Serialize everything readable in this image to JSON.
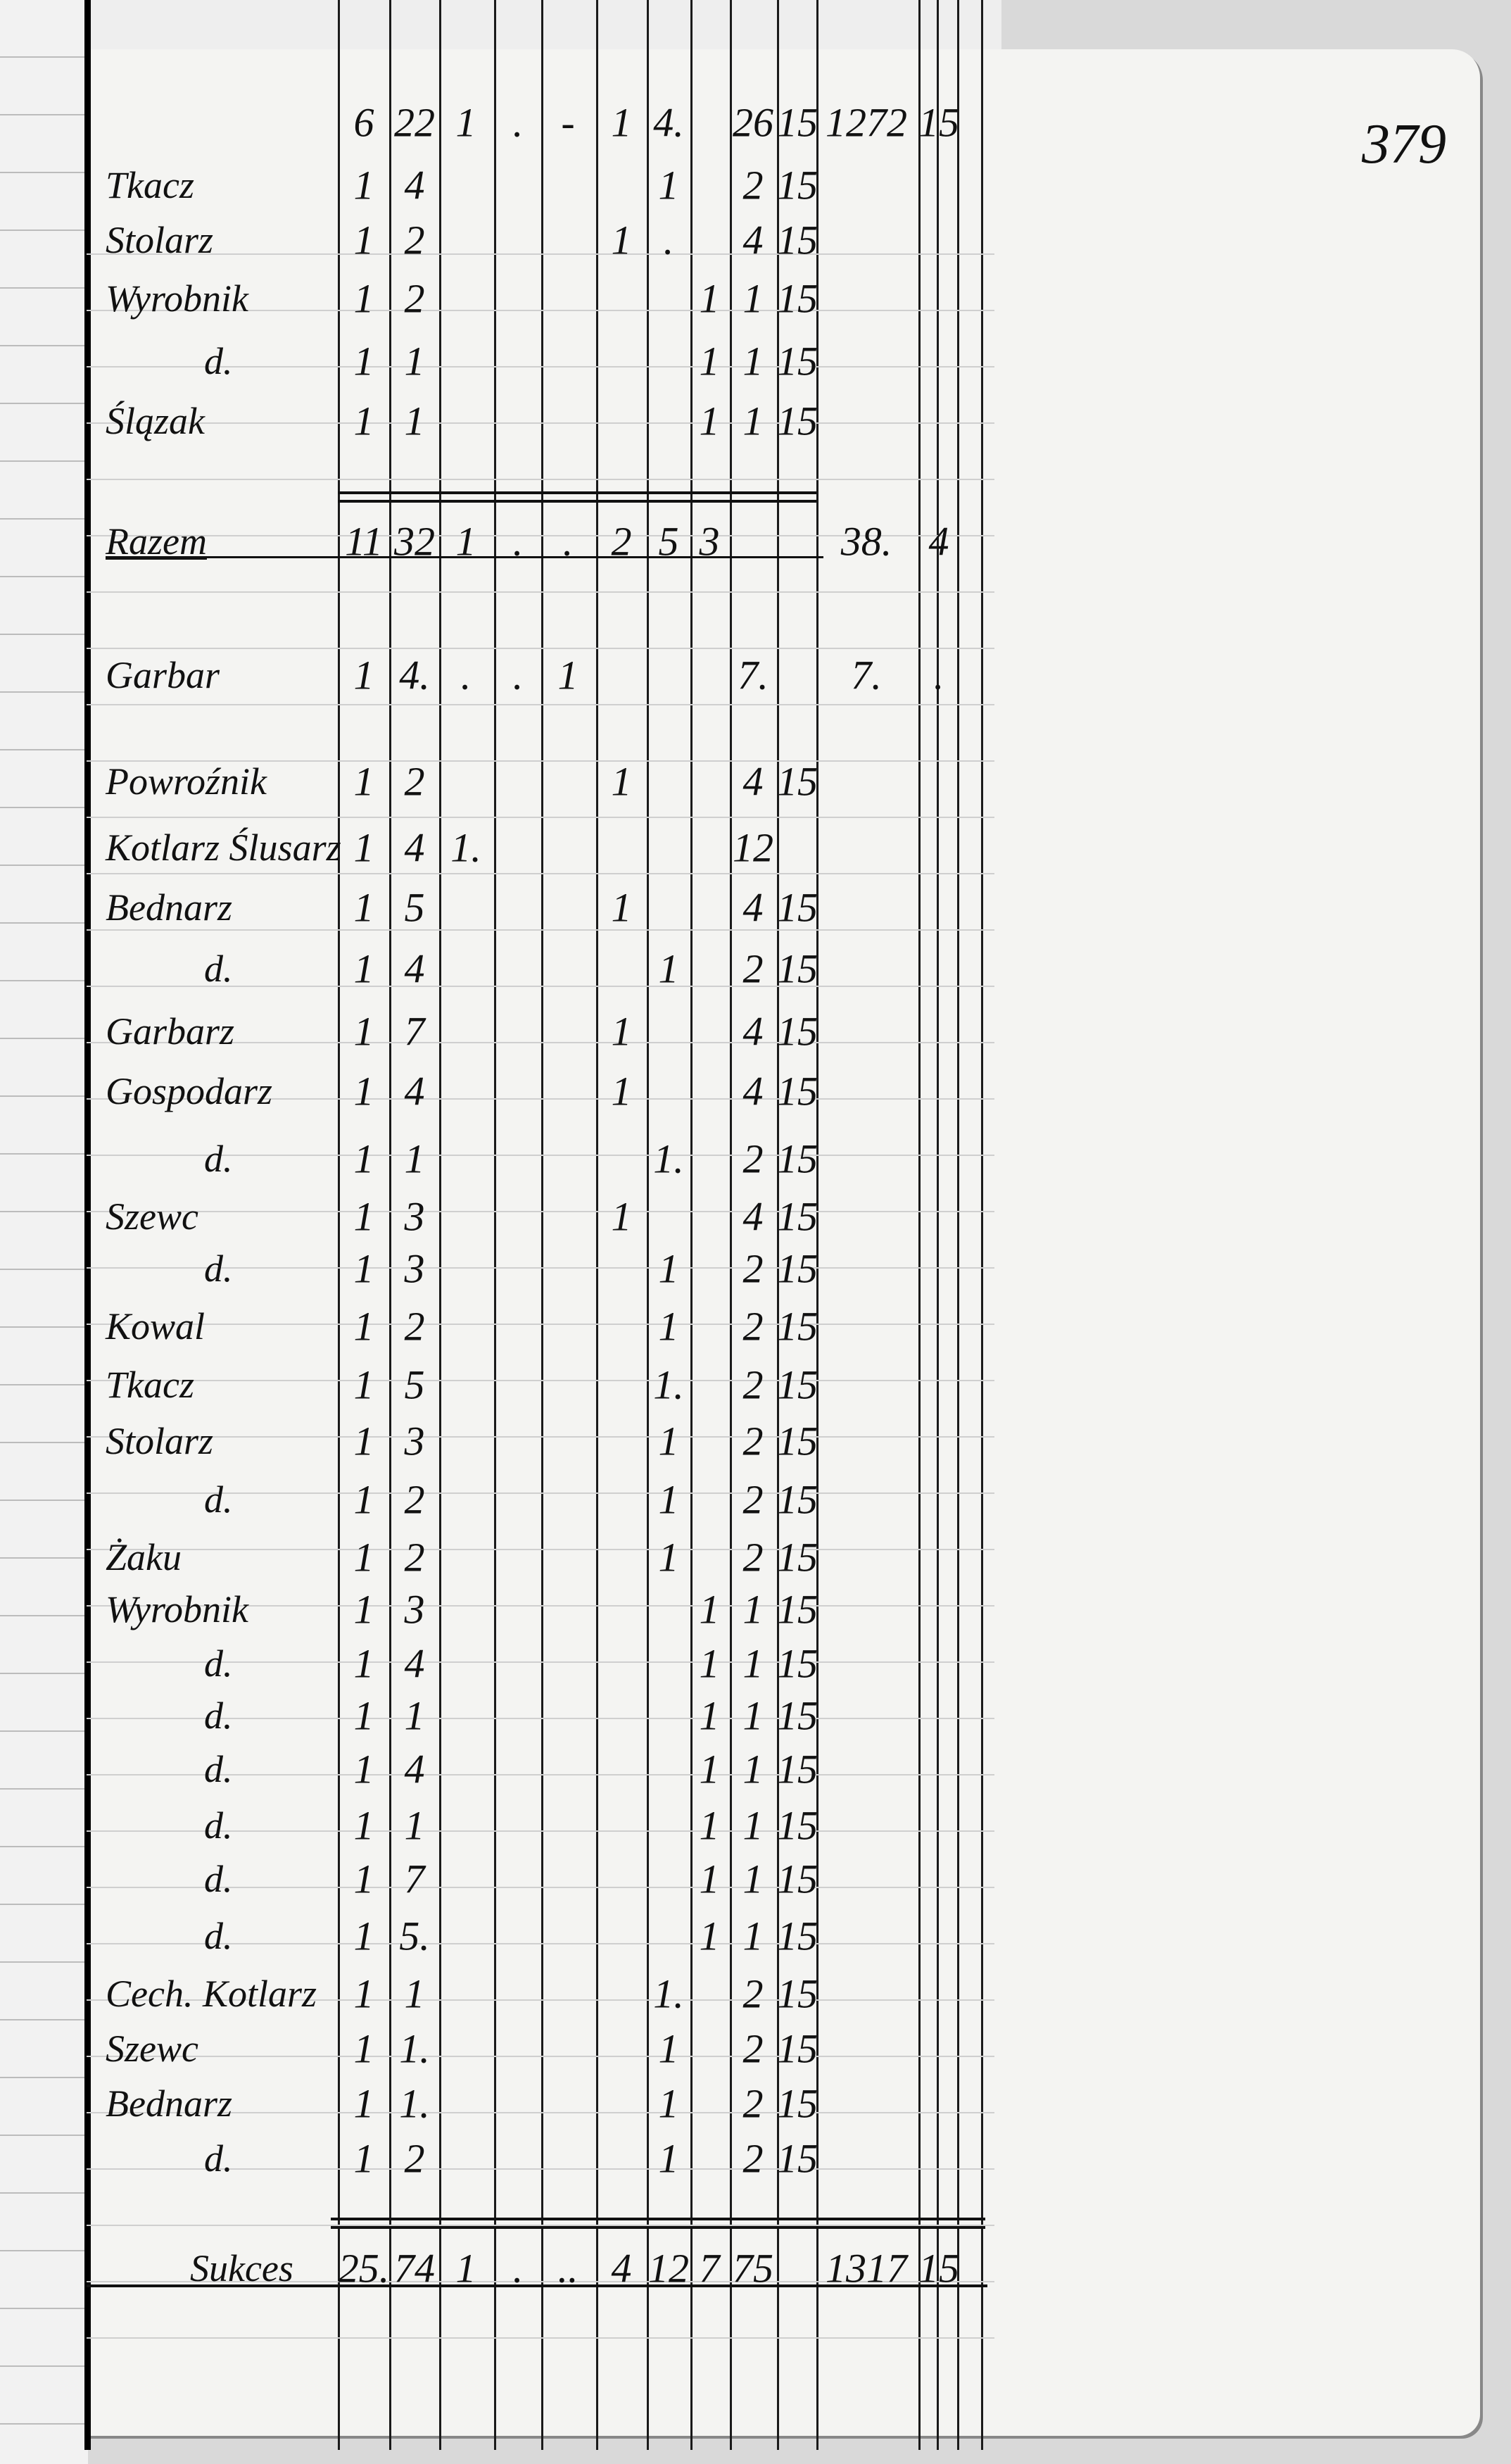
{
  "page_number": "379",
  "header_row": [
    "6",
    "22",
    "1",
    ".",
    "-",
    "1",
    "4.",
    "",
    "26",
    "15",
    "1272",
    "15"
  ],
  "rows": [
    {
      "name": "Tkacz",
      "cells": [
        "1",
        "4",
        "",
        "",
        "",
        "",
        "1",
        "",
        "2",
        "15",
        "",
        ""
      ]
    },
    {
      "name": "Stolarz",
      "cells": [
        "1",
        "2",
        "",
        "",
        "",
        "1",
        ".",
        "",
        "4",
        "15",
        "",
        ""
      ]
    },
    {
      "name": "Wyrobnik",
      "cells": [
        "1",
        "2",
        "",
        "",
        "",
        "",
        "",
        "1",
        "1",
        "15",
        "",
        ""
      ]
    },
    {
      "name": "d.",
      "cells": [
        "1",
        "1",
        "",
        "",
        "",
        "",
        "",
        "1",
        "1",
        "15",
        "",
        ""
      ]
    },
    {
      "name": "Ślązak",
      "cells": [
        "1",
        "1",
        "",
        "",
        "",
        "",
        "",
        "1",
        "1",
        "15",
        "",
        ""
      ]
    },
    {
      "name": "Razem",
      "cells": [
        "11",
        "32",
        "1",
        ".",
        ".",
        "2",
        "5",
        "3",
        "",
        "",
        "38.",
        "4"
      ],
      "subtotal": true
    },
    {
      "name": "Garbar",
      "cells": [
        "1",
        "4.",
        ".",
        ".",
        "1",
        "",
        "",
        "",
        "7.",
        "",
        "7.",
        "."
      ]
    },
    {
      "name": "Powroźnik",
      "cells": [
        "1",
        "2",
        "",
        "",
        "",
        "1",
        "",
        "",
        "4",
        "15",
        "",
        ""
      ]
    },
    {
      "name": "Kotlarz Ślusarz",
      "cells": [
        "1",
        "4",
        "1.",
        "",
        "",
        "",
        "",
        "",
        "12",
        "",
        "",
        ""
      ]
    },
    {
      "name": "Bednarz",
      "cells": [
        "1",
        "5",
        "",
        "",
        "",
        "1",
        "",
        "",
        "4",
        "15",
        "",
        ""
      ]
    },
    {
      "name": "d.",
      "cells": [
        "1",
        "4",
        "",
        "",
        "",
        "",
        "1",
        "",
        "2",
        "15",
        "",
        ""
      ]
    },
    {
      "name": "Garbarz",
      "cells": [
        "1",
        "7",
        "",
        "",
        "",
        "1",
        "",
        "",
        "4",
        "15",
        "",
        ""
      ]
    },
    {
      "name": "Gospodarz",
      "cells": [
        "1",
        "4",
        "",
        "",
        "",
        "1",
        "",
        "",
        "4",
        "15",
        "",
        ""
      ]
    },
    {
      "name": "d.",
      "cells": [
        "1",
        "1",
        "",
        "",
        "",
        "",
        "1.",
        "",
        "2",
        "15",
        "",
        ""
      ]
    },
    {
      "name": "Szewc",
      "cells": [
        "1",
        "3",
        "",
        "",
        "",
        "1",
        "",
        "",
        "4",
        "15",
        "",
        ""
      ]
    },
    {
      "name": "d.",
      "cells": [
        "1",
        "3",
        "",
        "",
        "",
        "",
        "1",
        "",
        "2",
        "15",
        "",
        ""
      ]
    },
    {
      "name": "Kowal",
      "cells": [
        "1",
        "2",
        "",
        "",
        "",
        "",
        "1",
        "",
        "2",
        "15",
        "",
        ""
      ]
    },
    {
      "name": "Tkacz",
      "cells": [
        "1",
        "5",
        "",
        "",
        "",
        "",
        "1.",
        "",
        "2",
        "15",
        "",
        ""
      ]
    },
    {
      "name": "Stolarz",
      "cells": [
        "1",
        "3",
        "",
        "",
        "",
        "",
        "1",
        "",
        "2",
        "15",
        "",
        ""
      ]
    },
    {
      "name": "d.",
      "cells": [
        "1",
        "2",
        "",
        "",
        "",
        "",
        "1",
        "",
        "2",
        "15",
        "",
        ""
      ]
    },
    {
      "name": "Żaku",
      "cells": [
        "1",
        "2",
        "",
        "",
        "",
        "",
        "1",
        "",
        "2",
        "15",
        "",
        ""
      ]
    },
    {
      "name": "Wyrobnik",
      "cells": [
        "1",
        "3",
        "",
        "",
        "",
        "",
        "",
        "1",
        "1",
        "15",
        "",
        ""
      ]
    },
    {
      "name": "d.",
      "cells": [
        "1",
        "4",
        "",
        "",
        "",
        "",
        "",
        "1",
        "1",
        "15",
        "",
        ""
      ]
    },
    {
      "name": "d.",
      "cells": [
        "1",
        "1",
        "",
        "",
        "",
        "",
        "",
        "1",
        "1",
        "15",
        "",
        ""
      ]
    },
    {
      "name": "d.",
      "cells": [
        "1",
        "4",
        "",
        "",
        "",
        "",
        "",
        "1",
        "1",
        "15",
        "",
        ""
      ]
    },
    {
      "name": "d.",
      "cells": [
        "1",
        "1",
        "",
        "",
        "",
        "",
        "",
        "1",
        "1",
        "15",
        "",
        ""
      ]
    },
    {
      "name": "d.",
      "cells": [
        "1",
        "7",
        "",
        "",
        "",
        "",
        "",
        "1",
        "1",
        "15",
        "",
        ""
      ]
    },
    {
      "name": "d.",
      "cells": [
        "1",
        "5.",
        "",
        "",
        "",
        "",
        "",
        "1",
        "1",
        "15",
        "",
        ""
      ]
    },
    {
      "name": "Cech. Kotlarz",
      "cells": [
        "1",
        "1",
        "",
        "",
        "",
        "",
        "1.",
        "",
        "2",
        "15",
        "",
        ""
      ]
    },
    {
      "name": "Szewc",
      "cells": [
        "1",
        "1.",
        "",
        "",
        "",
        "",
        "1",
        "",
        "2",
        "15",
        "",
        ""
      ]
    },
    {
      "name": "Bednarz",
      "cells": [
        "1",
        "1.",
        "",
        "",
        "",
        "",
        "1",
        "",
        "2",
        "15",
        "",
        ""
      ]
    },
    {
      "name": "d.",
      "cells": [
        "1",
        "2",
        "",
        "",
        "",
        "",
        "1",
        "",
        "2",
        "15",
        "",
        ""
      ]
    },
    {
      "name": "Sukces",
      "cells": [
        "25.",
        "74",
        "1",
        ".",
        "..",
        "4",
        "12",
        "7",
        "75",
        "",
        "1317",
        "15"
      ],
      "total": true
    }
  ]
}
